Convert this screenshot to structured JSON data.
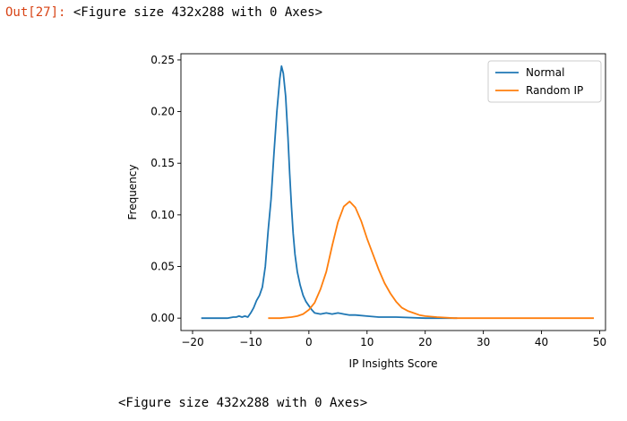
{
  "output": {
    "prompt": "Out[27]:",
    "text": "<Figure size 432x288 with 0 Axes>"
  },
  "footer_text": "<Figure size 432x288 with 0 Axes>",
  "chart_data": {
    "type": "line",
    "xlabel": "IP Insights Score",
    "ylabel": "Frequency",
    "xlim": [
      -22,
      51
    ],
    "ylim": [
      -0.012,
      0.256
    ],
    "xticks": [
      -20,
      -10,
      0,
      10,
      20,
      30,
      40,
      50
    ],
    "xtick_labels": [
      "−20",
      "−10",
      "0",
      "10",
      "20",
      "30",
      "40",
      "50"
    ],
    "yticks": [
      0.0,
      0.05,
      0.1,
      0.15,
      0.2,
      0.25
    ],
    "ytick_labels": [
      "0.00",
      "0.05",
      "0.10",
      "0.15",
      "0.20",
      "0.25"
    ],
    "legend_position": "top-right",
    "grid": false,
    "series": [
      {
        "name": "Normal",
        "color": "#1f77b4",
        "x": [
          -18.5,
          -16,
          -14,
          -13,
          -12.5,
          -12,
          -11.5,
          -11,
          -10.5,
          -10,
          -9.5,
          -9,
          -8.5,
          -8,
          -7.5,
          -7,
          -6.5,
          -6,
          -5.5,
          -5,
          -4.7,
          -4.4,
          -4,
          -3.6,
          -3.3,
          -3,
          -2.7,
          -2.4,
          -2,
          -1.5,
          -1,
          -0.5,
          0,
          0.5,
          1,
          2,
          3,
          4,
          5,
          6,
          7,
          8,
          10,
          12,
          15,
          20,
          25.5
        ],
        "y": [
          0.0,
          0.0,
          0.0,
          0.001,
          0.001,
          0.002,
          0.001,
          0.002,
          0.001,
          0.005,
          0.01,
          0.017,
          0.022,
          0.03,
          0.05,
          0.085,
          0.115,
          0.16,
          0.2,
          0.232,
          0.244,
          0.237,
          0.215,
          0.175,
          0.14,
          0.108,
          0.082,
          0.062,
          0.045,
          0.032,
          0.022,
          0.016,
          0.012,
          0.008,
          0.005,
          0.004,
          0.005,
          0.004,
          0.005,
          0.004,
          0.003,
          0.003,
          0.002,
          0.001,
          0.001,
          0.0,
          0.0
        ]
      },
      {
        "name": "Random IP",
        "color": "#ff7f0e",
        "x": [
          -7,
          -5,
          -3,
          -2,
          -1,
          0,
          1,
          2,
          3,
          4,
          5,
          6,
          7,
          8,
          9,
          10,
          11,
          12,
          13,
          14,
          15,
          16,
          17,
          18,
          19,
          20,
          22,
          25,
          30,
          35,
          40,
          45,
          49
        ],
        "y": [
          0.0,
          0.0,
          0.001,
          0.002,
          0.004,
          0.008,
          0.015,
          0.028,
          0.045,
          0.07,
          0.093,
          0.108,
          0.113,
          0.107,
          0.094,
          0.077,
          0.062,
          0.047,
          0.034,
          0.024,
          0.016,
          0.01,
          0.007,
          0.005,
          0.003,
          0.002,
          0.001,
          0.0,
          0.0,
          0.0,
          0.0,
          0.0,
          0.0
        ]
      }
    ]
  }
}
